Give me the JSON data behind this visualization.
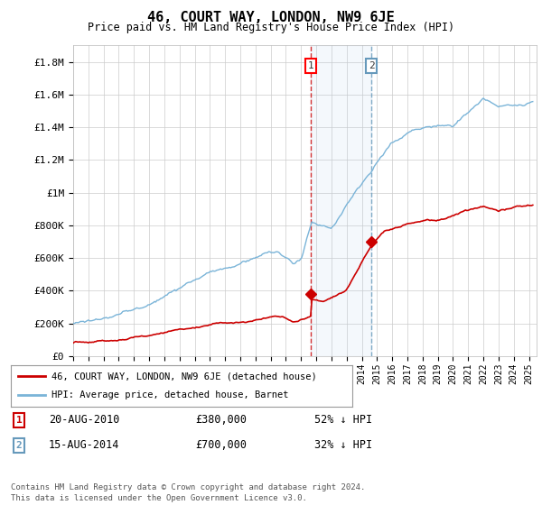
{
  "title": "46, COURT WAY, LONDON, NW9 6JE",
  "subtitle": "Price paid vs. HM Land Registry's House Price Index (HPI)",
  "ylabel_ticks": [
    "£0",
    "£200K",
    "£400K",
    "£600K",
    "£800K",
    "£1M",
    "£1.2M",
    "£1.4M",
    "£1.6M",
    "£1.8M"
  ],
  "ytick_values": [
    0,
    200000,
    400000,
    600000,
    800000,
    1000000,
    1200000,
    1400000,
    1600000,
    1800000
  ],
  "ylim": [
    0,
    1900000
  ],
  "xlim_start": 1995.0,
  "xlim_end": 2025.5,
  "hpi_color": "#7ab4d8",
  "price_color": "#cc0000",
  "sale1_date": 2010.63,
  "sale1_price": 380000,
  "sale2_date": 2014.62,
  "sale2_price": 700000,
  "vline1_x": 2010.63,
  "vline2_x": 2014.62,
  "shade_start": 2010.63,
  "shade_end": 2014.62,
  "legend_label_price": "46, COURT WAY, LONDON, NW9 6JE (detached house)",
  "legend_label_hpi": "HPI: Average price, detached house, Barnet",
  "table_row1": [
    "1",
    "20-AUG-2010",
    "£380,000",
    "52% ↓ HPI"
  ],
  "table_row2": [
    "2",
    "15-AUG-2014",
    "£700,000",
    "32% ↓ HPI"
  ],
  "footer": "Contains HM Land Registry data © Crown copyright and database right 2024.\nThis data is licensed under the Open Government Licence v3.0.",
  "background_color": "#ffffff",
  "grid_color": "#cccccc"
}
